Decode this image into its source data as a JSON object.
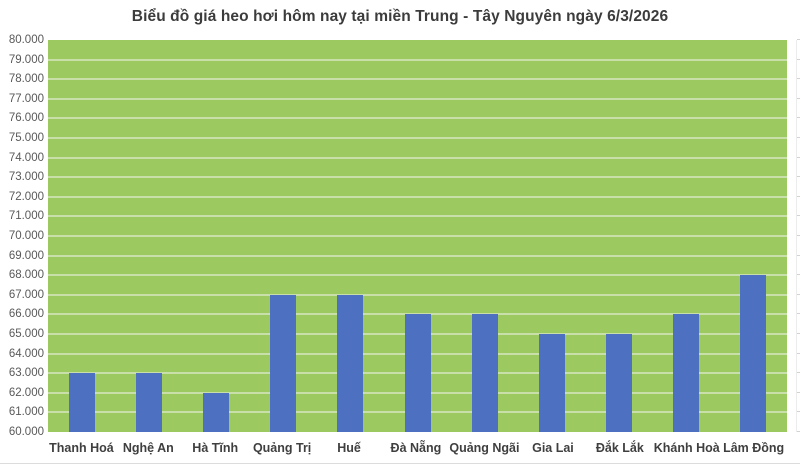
{
  "chart_data": {
    "type": "bar",
    "title": "Biểu đồ giá heo hơi hôm nay tại miền Trung - Tây Nguyên ngày 6/3/2026",
    "categories": [
      "Thanh Hoá",
      "Nghệ An",
      "Hà Tĩnh",
      "Quảng Trị",
      "Huế",
      "Đà Nẵng",
      "Quảng Ngãi",
      "Gia Lai",
      "Đắk Lắk",
      "Khánh Hoà",
      "Lâm Đồng"
    ],
    "values": [
      63000,
      63000,
      62000,
      67000,
      67000,
      66000,
      66000,
      65000,
      65000,
      66000,
      68000
    ],
    "ytick_labels": [
      "60.000",
      "61.000",
      "62.000",
      "63.000",
      "64.000",
      "65.000",
      "66.000",
      "67.000",
      "68.000",
      "69.000",
      "70.000",
      "71.000",
      "72.000",
      "73.000",
      "74.000",
      "75.000",
      "76.000",
      "77.000",
      "78.000",
      "79.000",
      "80.000"
    ],
    "xlabel": "",
    "ylabel": "",
    "ylim": [
      60000,
      80000
    ],
    "ytick_step": 1000,
    "grid": true,
    "legend": false,
    "colors": {
      "bar": "#4d71c0",
      "plot_background": "#9cca61",
      "gridline": "#c9dfa9",
      "title_text": "#3c3c3c",
      "ytick_text": "#595959",
      "xtick_text": "#3f3f3f",
      "page_background": "#ffffff"
    }
  }
}
